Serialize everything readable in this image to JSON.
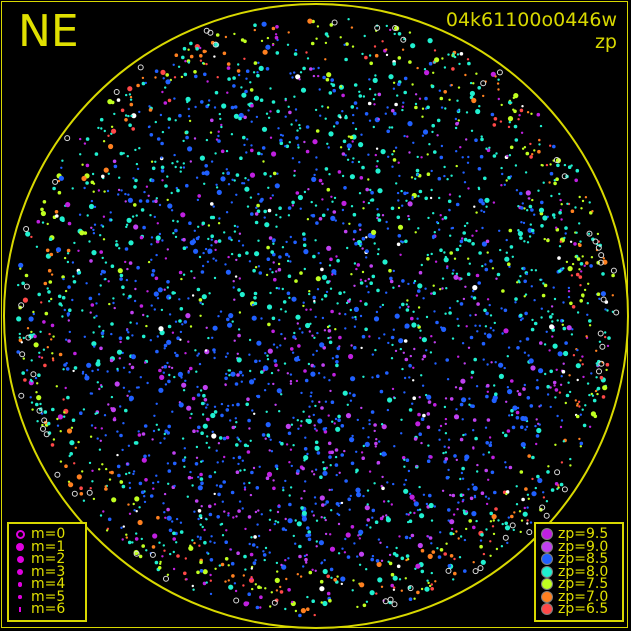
{
  "header": {
    "direction": "NE",
    "title": "04k61100o0446w",
    "subtitle": "zp"
  },
  "magnitude_legend": {
    "items": [
      {
        "label": "m=0",
        "size": 0
      },
      {
        "label": "m=1",
        "size": 1
      },
      {
        "label": "m=2",
        "size": 2
      },
      {
        "label": "m=3",
        "size": 3
      },
      {
        "label": "m=4",
        "size": 4
      },
      {
        "label": "m=5",
        "size": 5
      },
      {
        "label": "m=6",
        "size": 6
      }
    ],
    "color": "#e000e0"
  },
  "zp_legend": {
    "items": [
      {
        "label": "zp=9.5",
        "color": "#c020e0"
      },
      {
        "label": "zp=9.0",
        "color": "#c040f0"
      },
      {
        "label": "zp=8.5",
        "color": "#2060ff"
      },
      {
        "label": "zp=8.0",
        "color": "#20f0d0"
      },
      {
        "label": "zp=7.5",
        "color": "#c0ff20"
      },
      {
        "label": "zp=7.0",
        "color": "#ff8020"
      },
      {
        "label": "zp=6.5",
        "color": "#ff4848"
      }
    ]
  },
  "colors": {
    "frame": "#d8d800",
    "background": "#000000"
  }
}
